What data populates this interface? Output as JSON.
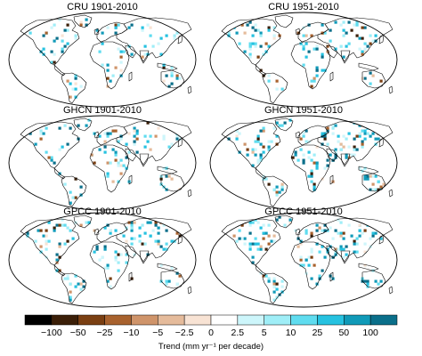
{
  "panels": [
    {
      "title": "CRU 1901-2010",
      "intensity": 0.25
    },
    {
      "title": "CRU 1951-2010",
      "intensity": 0.45
    },
    {
      "title": "GHCN 1901-2010",
      "intensity": 0.45
    },
    {
      "title": "GHCN 1951-2010",
      "intensity": 0.8
    },
    {
      "title": "GPCC 1901-2010",
      "intensity": 0.6
    },
    {
      "title": "GPCC 1951-2010",
      "intensity": 0.8
    }
  ],
  "colorbar": {
    "bins": [
      {
        "color": "#000000"
      },
      {
        "color": "#3b1f08"
      },
      {
        "color": "#7a3f12"
      },
      {
        "color": "#a8622e"
      },
      {
        "color": "#cf946a"
      },
      {
        "color": "#e5bb9b"
      },
      {
        "color": "#f8e3d4"
      },
      {
        "color": "#ffffff"
      },
      {
        "color": "#cdf6fb"
      },
      {
        "color": "#9feef7"
      },
      {
        "color": "#5fdcef"
      },
      {
        "color": "#26c2e0"
      },
      {
        "color": "#109ab8"
      },
      {
        "color": "#0a6f8a"
      }
    ],
    "tick_labels": [
      "-100",
      "-50",
      "-25",
      "-10",
      "-5",
      "-2.5",
      "0",
      "2.5",
      "5",
      "10",
      "25",
      "50",
      "100"
    ],
    "title": "Trend (mm yr⁻¹ per decade)"
  },
  "colors": {
    "land_outline": "#000000",
    "frame": "#000000",
    "background": "#ffffff"
  }
}
